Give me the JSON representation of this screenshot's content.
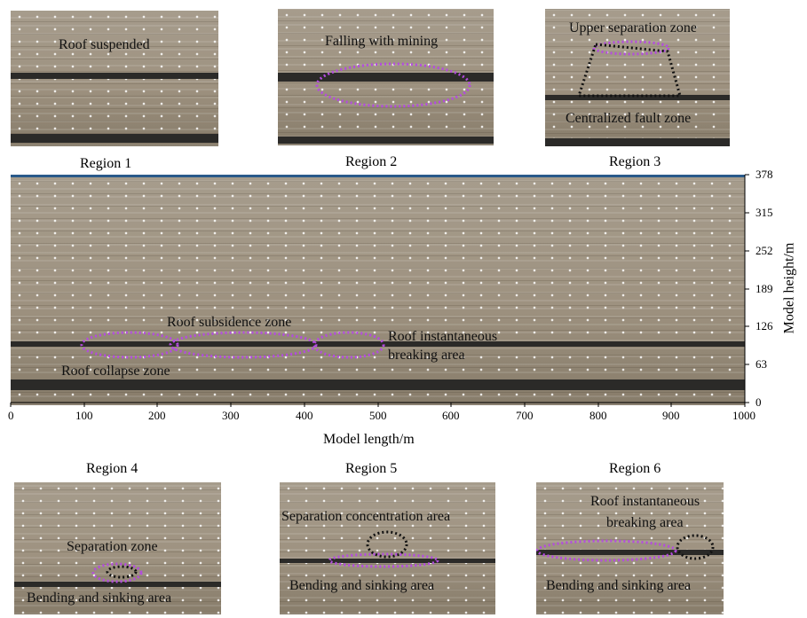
{
  "panels": {
    "region1": {
      "caption": "Region 1",
      "annotations": [
        "Roof suspended"
      ]
    },
    "region2": {
      "caption": "Region 2",
      "annotations": [
        "Falling with mining"
      ]
    },
    "region3": {
      "caption": "Region 3",
      "annotations": [
        "Upper separation zone",
        "Centralized fault zone"
      ]
    },
    "region4": {
      "caption": "Region 4",
      "annotations": [
        "Separation zone",
        "Bending and sinking area"
      ]
    },
    "region5": {
      "caption": "Region 5",
      "annotations": [
        "Separation concentration area",
        "Bending and sinking area"
      ]
    },
    "region6": {
      "caption": "Region 6",
      "annotations": [
        "Roof instantaneous",
        "breaking area",
        "Bending and sinking area"
      ]
    }
  },
  "main": {
    "annotations": {
      "subsidence": "Roof subsidence zone",
      "instantaneous_1": "Roof instantaneous",
      "instantaneous_2": "breaking area",
      "collapse": "Roof collapse zone"
    },
    "x_axis": {
      "label": "Model length/m",
      "ticks": [
        "0",
        "100",
        "200",
        "300",
        "400",
        "500",
        "600",
        "700",
        "800",
        "900",
        "1000"
      ]
    },
    "y_axis": {
      "label": "Model height/m",
      "ticks": [
        "0",
        "63",
        "126",
        "189",
        "252",
        "315",
        "378"
      ]
    }
  },
  "colors": {
    "highlight_ellipse": "#b44be0",
    "fault_outline": "#111111",
    "rock": "#9e9280"
  }
}
